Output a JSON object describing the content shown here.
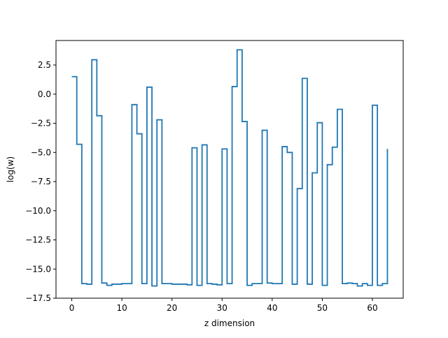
{
  "chart_data": {
    "type": "line",
    "drawstyle": "steps-post",
    "title": "",
    "xlabel": "z dimension",
    "ylabel": "log(w)",
    "xlim": [
      -3.15,
      66.15
    ],
    "ylim": [
      -17.5,
      4.6
    ],
    "xticks": [
      0,
      10,
      20,
      30,
      40,
      50,
      60
    ],
    "yticks": [
      -17.5,
      -15.0,
      -12.5,
      -10.0,
      -7.5,
      -5.0,
      -2.5,
      0.0,
      2.5
    ],
    "ytick_labels": [
      "−17.5",
      "−15.0",
      "−12.5",
      "−10.0",
      "−7.5",
      "−5.0",
      "−2.5",
      "0.0",
      "2.5"
    ],
    "grid": false,
    "line_color": "#1f77b4",
    "series": [
      {
        "x": [
          0,
          1,
          2,
          3,
          4,
          5,
          6,
          7,
          8,
          9,
          10,
          11,
          12,
          13,
          14,
          15,
          16,
          17,
          18,
          19,
          20,
          21,
          22,
          23,
          24,
          25,
          26,
          27,
          28,
          29,
          30,
          31,
          32,
          33,
          34,
          35,
          36,
          37,
          38,
          39,
          40,
          41,
          42,
          43,
          44,
          45,
          46,
          47,
          48,
          49,
          50,
          51,
          52,
          53,
          54,
          55,
          56,
          57,
          58,
          59,
          60,
          61,
          62,
          63
        ],
        "values": [
          1.5,
          -4.3,
          -16.25,
          -16.3,
          2.95,
          -1.85,
          -16.2,
          -16.4,
          -16.3,
          -16.3,
          -16.25,
          -16.25,
          -0.9,
          -3.4,
          -16.25,
          0.6,
          -16.45,
          -2.2,
          -16.25,
          -16.25,
          -16.3,
          -16.3,
          -16.3,
          -16.35,
          -4.6,
          -16.4,
          -4.35,
          -16.25,
          -16.3,
          -16.35,
          -4.7,
          -16.25,
          0.65,
          3.8,
          -2.35,
          -16.4,
          -16.25,
          -16.25,
          -3.1,
          -16.2,
          -16.25,
          -16.25,
          -4.5,
          -5.0,
          -16.3,
          -8.1,
          1.35,
          -16.3,
          -6.75,
          -2.45,
          -16.4,
          -6.05,
          -4.55,
          -1.3,
          -16.25,
          -16.2,
          -16.25,
          -16.45,
          -16.25,
          -16.4,
          -0.95,
          -16.4,
          -16.25,
          -4.7
        ]
      }
    ]
  }
}
